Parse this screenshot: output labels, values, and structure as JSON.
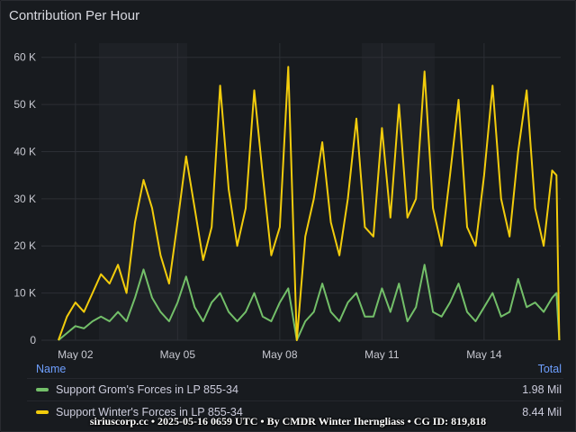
{
  "panel": {
    "title": "Contribution Per Hour"
  },
  "legend": {
    "name_header": "Name",
    "total_header": "Total",
    "items": [
      {
        "name": "Support Grom's Forces in LP 855-34",
        "total": "1.98 Mil",
        "color": "#73bf69"
      },
      {
        "name": "Support Winter's Forces in LP 855-34",
        "total": "8.44 Mil",
        "color": "#f2cc0c"
      }
    ]
  },
  "footer": {
    "text": "siriuscorp.cc • 2025-05-16 0659 UTC • By CMDR Winter Iherngliass • CG ID: 819,818"
  },
  "chart_data": {
    "type": "line",
    "title": "Contribution Per Hour",
    "x_range": [
      "2025-05-01T00:00",
      "2025-05-16T06:00"
    ],
    "x_ticks": [
      "May 02",
      "May 05",
      "May 08",
      "May 11",
      "May 14"
    ],
    "y_ticks": [
      "0",
      "10 K",
      "20 K",
      "30 K",
      "40 K",
      "50 K",
      "60 K"
    ],
    "ylim": [
      0,
      63000
    ],
    "grid": true,
    "legend_placement": "bottom",
    "series": [
      {
        "name": "Support Grom's Forces in LP 855-34",
        "color": "#73bf69",
        "points": [
          [
            "2025-05-01T12:00",
            0
          ],
          [
            "2025-05-01T18:00",
            1500
          ],
          [
            "2025-05-02T00:00",
            3000
          ],
          [
            "2025-05-02T06:00",
            2500
          ],
          [
            "2025-05-02T12:00",
            4000
          ],
          [
            "2025-05-02T18:00",
            5000
          ],
          [
            "2025-05-03T00:00",
            4000
          ],
          [
            "2025-05-03T06:00",
            6000
          ],
          [
            "2025-05-03T12:00",
            4000
          ],
          [
            "2025-05-03T18:00",
            9000
          ],
          [
            "2025-05-04T00:00",
            15000
          ],
          [
            "2025-05-04T06:00",
            9000
          ],
          [
            "2025-05-04T12:00",
            6000
          ],
          [
            "2025-05-04T18:00",
            4000
          ],
          [
            "2025-05-05T00:00",
            8000
          ],
          [
            "2025-05-05T06:00",
            13500
          ],
          [
            "2025-05-05T12:00",
            7000
          ],
          [
            "2025-05-05T18:00",
            4000
          ],
          [
            "2025-05-06T00:00",
            8000
          ],
          [
            "2025-05-06T06:00",
            10000
          ],
          [
            "2025-05-06T12:00",
            6000
          ],
          [
            "2025-05-06T18:00",
            4000
          ],
          [
            "2025-05-07T00:00",
            6000
          ],
          [
            "2025-05-07T06:00",
            10000
          ],
          [
            "2025-05-07T12:00",
            5000
          ],
          [
            "2025-05-07T18:00",
            4000
          ],
          [
            "2025-05-08T00:00",
            8000
          ],
          [
            "2025-05-08T06:00",
            11000
          ],
          [
            "2025-05-08T12:00",
            0
          ],
          [
            "2025-05-08T18:00",
            4000
          ],
          [
            "2025-05-09T00:00",
            6000
          ],
          [
            "2025-05-09T06:00",
            12000
          ],
          [
            "2025-05-09T12:00",
            6000
          ],
          [
            "2025-05-09T18:00",
            4000
          ],
          [
            "2025-05-10T00:00",
            8000
          ],
          [
            "2025-05-10T06:00",
            10000
          ],
          [
            "2025-05-10T12:00",
            5000
          ],
          [
            "2025-05-10T18:00",
            5000
          ],
          [
            "2025-05-11T00:00",
            11000
          ],
          [
            "2025-05-11T06:00",
            6000
          ],
          [
            "2025-05-11T12:00",
            12000
          ],
          [
            "2025-05-11T18:00",
            4000
          ],
          [
            "2025-05-12T00:00",
            7000
          ],
          [
            "2025-05-12T06:00",
            16000
          ],
          [
            "2025-05-12T12:00",
            6000
          ],
          [
            "2025-05-12T18:00",
            5000
          ],
          [
            "2025-05-13T00:00",
            8000
          ],
          [
            "2025-05-13T06:00",
            12000
          ],
          [
            "2025-05-13T12:00",
            6000
          ],
          [
            "2025-05-13T18:00",
            4000
          ],
          [
            "2025-05-14T00:00",
            7000
          ],
          [
            "2025-05-14T06:00",
            10000
          ],
          [
            "2025-05-14T12:00",
            5000
          ],
          [
            "2025-05-14T18:00",
            6000
          ],
          [
            "2025-05-15T00:00",
            13000
          ],
          [
            "2025-05-15T06:00",
            7000
          ],
          [
            "2025-05-15T12:00",
            8000
          ],
          [
            "2025-05-15T18:00",
            6000
          ],
          [
            "2025-05-16T00:00",
            9000
          ],
          [
            "2025-05-16T03:00",
            10000
          ],
          [
            "2025-05-16T05:00",
            0
          ]
        ]
      },
      {
        "name": "Support Winter's Forces in LP 855-34",
        "color": "#f2cc0c",
        "points": [
          [
            "2025-05-01T12:00",
            0
          ],
          [
            "2025-05-01T18:00",
            5000
          ],
          [
            "2025-05-02T00:00",
            8000
          ],
          [
            "2025-05-02T06:00",
            6000
          ],
          [
            "2025-05-02T12:00",
            10000
          ],
          [
            "2025-05-02T18:00",
            14000
          ],
          [
            "2025-05-03T00:00",
            12000
          ],
          [
            "2025-05-03T06:00",
            16000
          ],
          [
            "2025-05-03T12:00",
            10000
          ],
          [
            "2025-05-03T18:00",
            25000
          ],
          [
            "2025-05-04T00:00",
            34000
          ],
          [
            "2025-05-04T06:00",
            28000
          ],
          [
            "2025-05-04T12:00",
            18000
          ],
          [
            "2025-05-04T18:00",
            12000
          ],
          [
            "2025-05-05T00:00",
            25000
          ],
          [
            "2025-05-05T06:00",
            39000
          ],
          [
            "2025-05-05T12:00",
            28000
          ],
          [
            "2025-05-05T18:00",
            17000
          ],
          [
            "2025-05-06T00:00",
            24000
          ],
          [
            "2025-05-06T06:00",
            54000
          ],
          [
            "2025-05-06T12:00",
            32000
          ],
          [
            "2025-05-06T18:00",
            20000
          ],
          [
            "2025-05-07T00:00",
            28000
          ],
          [
            "2025-05-07T06:00",
            53000
          ],
          [
            "2025-05-07T12:00",
            35000
          ],
          [
            "2025-05-07T18:00",
            18000
          ],
          [
            "2025-05-08T00:00",
            24000
          ],
          [
            "2025-05-08T06:00",
            58000
          ],
          [
            "2025-05-08T12:00",
            0
          ],
          [
            "2025-05-08T18:00",
            22000
          ],
          [
            "2025-05-09T00:00",
            30000
          ],
          [
            "2025-05-09T06:00",
            42000
          ],
          [
            "2025-05-09T12:00",
            25000
          ],
          [
            "2025-05-09T18:00",
            18000
          ],
          [
            "2025-05-10T00:00",
            30000
          ],
          [
            "2025-05-10T06:00",
            47000
          ],
          [
            "2025-05-10T12:00",
            24000
          ],
          [
            "2025-05-10T18:00",
            22000
          ],
          [
            "2025-05-11T00:00",
            45000
          ],
          [
            "2025-05-11T06:00",
            26000
          ],
          [
            "2025-05-11T12:00",
            50000
          ],
          [
            "2025-05-11T18:00",
            26000
          ],
          [
            "2025-05-12T00:00",
            30000
          ],
          [
            "2025-05-12T06:00",
            57000
          ],
          [
            "2025-05-12T12:00",
            28000
          ],
          [
            "2025-05-12T18:00",
            20000
          ],
          [
            "2025-05-13T00:00",
            35000
          ],
          [
            "2025-05-13T06:00",
            51000
          ],
          [
            "2025-05-13T12:00",
            24000
          ],
          [
            "2025-05-13T18:00",
            20000
          ],
          [
            "2025-05-14T00:00",
            35000
          ],
          [
            "2025-05-14T06:00",
            54000
          ],
          [
            "2025-05-14T12:00",
            30000
          ],
          [
            "2025-05-14T18:00",
            22000
          ],
          [
            "2025-05-15T00:00",
            40000
          ],
          [
            "2025-05-15T06:00",
            53000
          ],
          [
            "2025-05-15T12:00",
            28000
          ],
          [
            "2025-05-15T18:00",
            20000
          ],
          [
            "2025-05-16T00:00",
            36000
          ],
          [
            "2025-05-16T03:00",
            35000
          ],
          [
            "2025-05-16T05:00",
            0
          ]
        ]
      }
    ]
  }
}
